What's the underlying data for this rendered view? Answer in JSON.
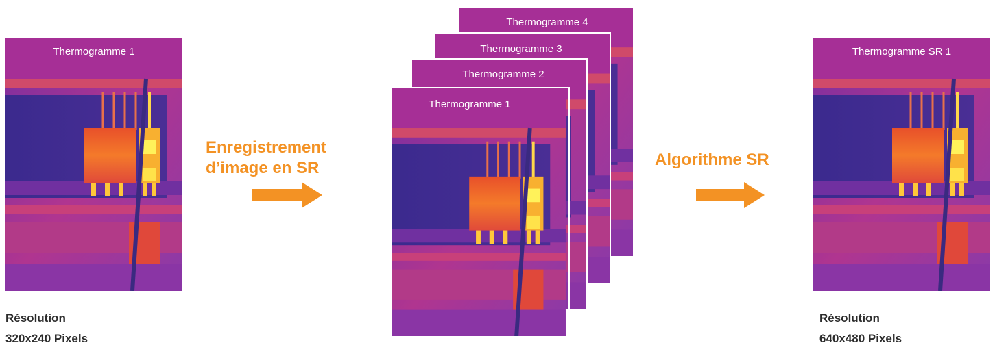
{
  "left": {
    "label": "Thermogramme 1",
    "resolution_title": "Résolution",
    "resolution_value": "320x240 Pixels"
  },
  "step1": {
    "lines": [
      "Enregistrement",
      "d’image en SR"
    ]
  },
  "stack": {
    "frames": [
      "Thermogramme 4",
      "Thermogramme 3",
      "Thermogramme 2",
      "Thermogramme 1"
    ]
  },
  "step2": {
    "label": "Algorithme SR"
  },
  "right": {
    "label": "Thermogramme SR 1",
    "resolution_title": "Résolution",
    "resolution_value": "640x480 Pixels"
  }
}
